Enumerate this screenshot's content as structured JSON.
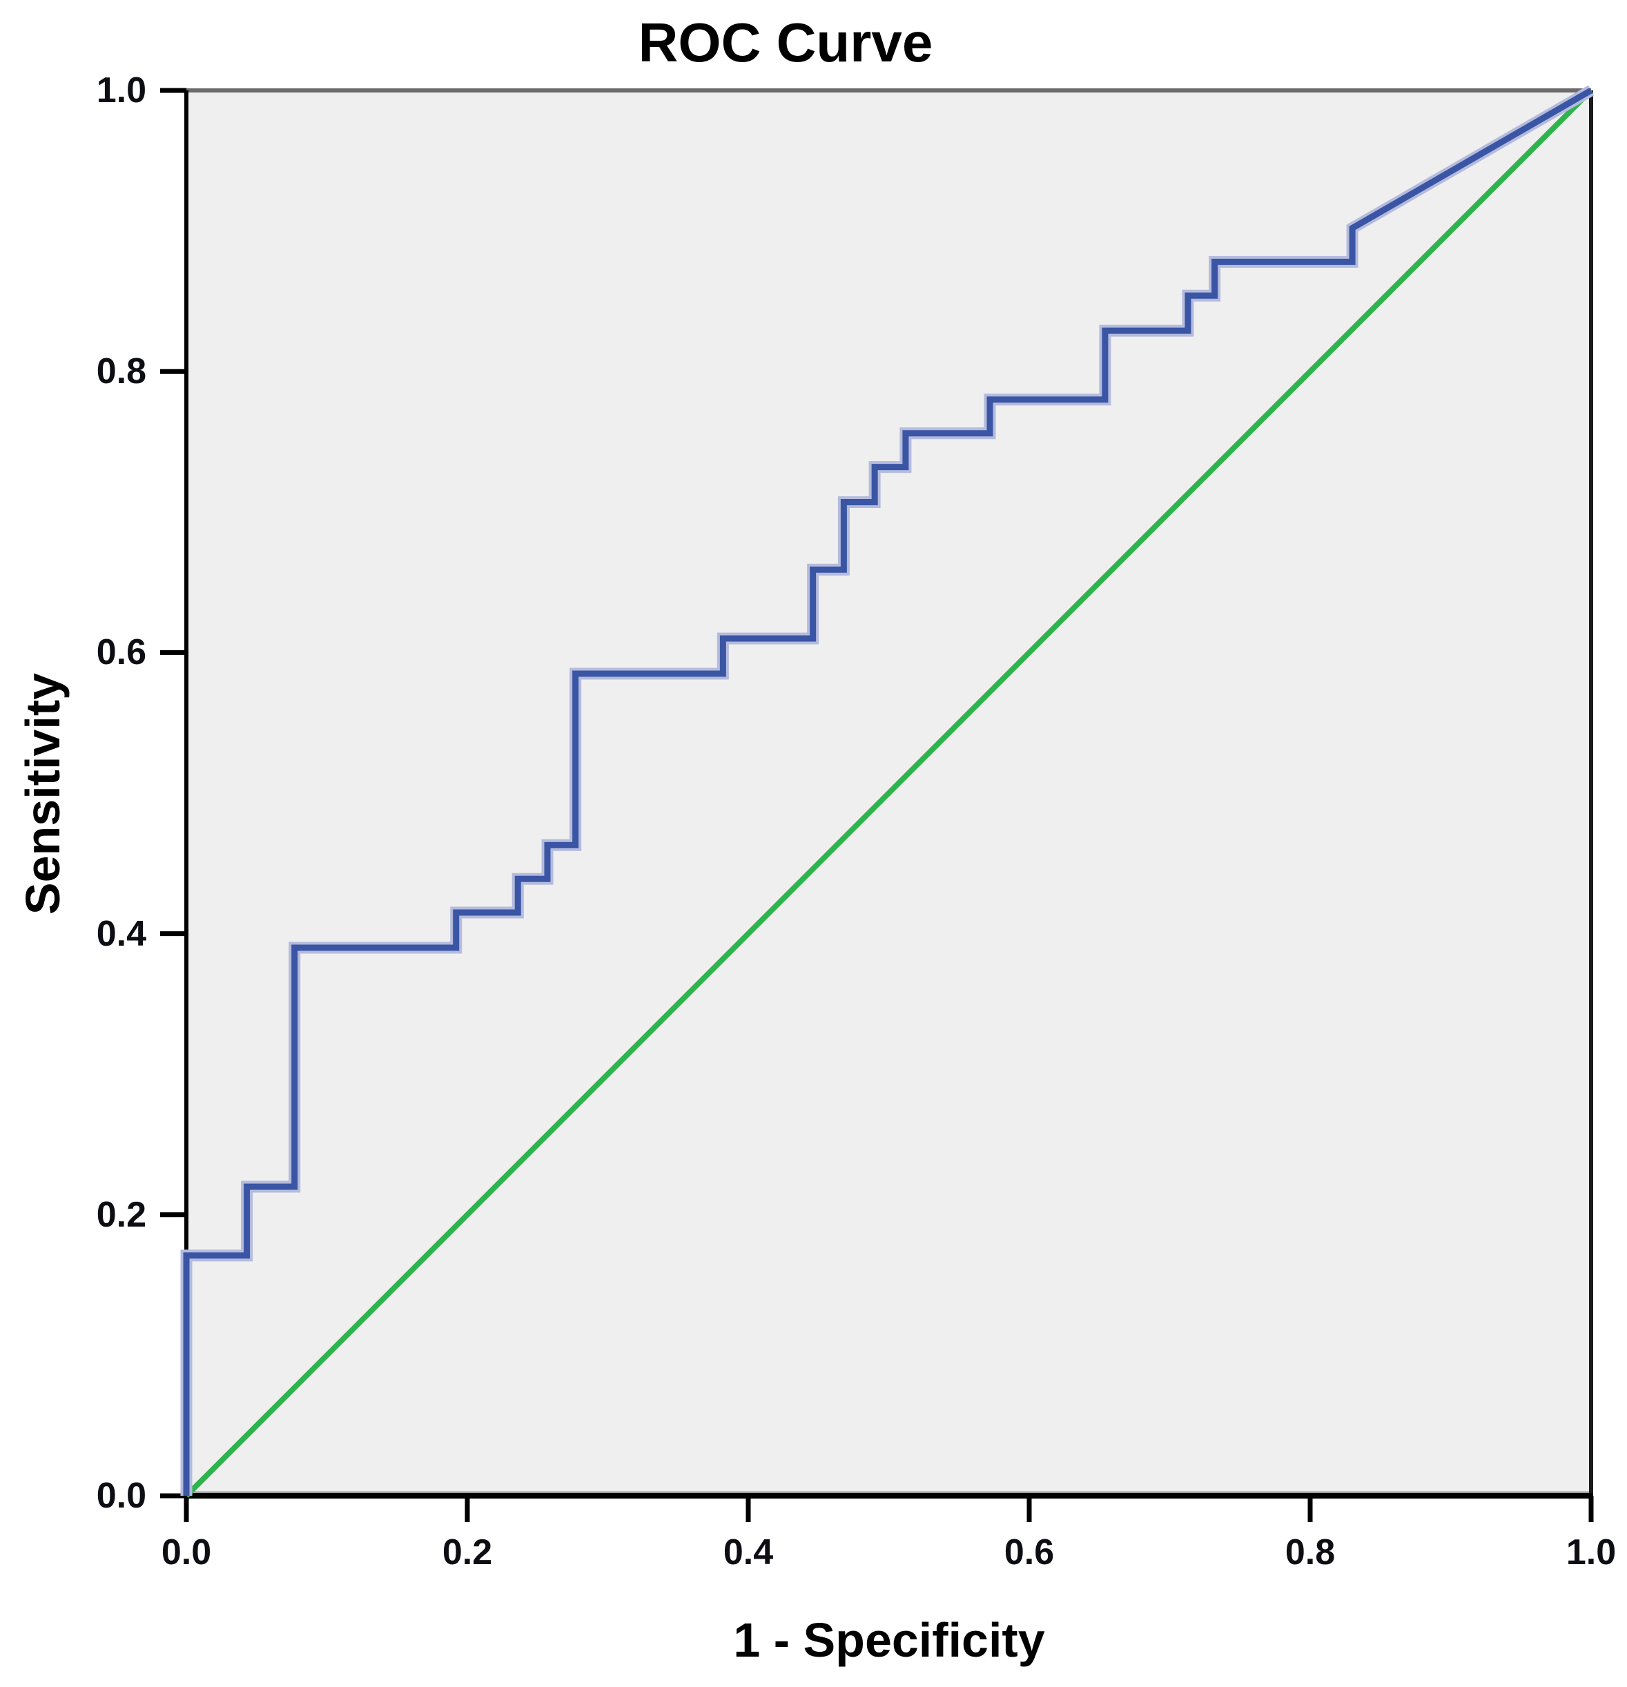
{
  "chart": {
    "title": "ROC Curve",
    "xlabel": "1 - Specificity",
    "ylabel": "Sensitivity"
  },
  "chart_data": {
    "type": "line",
    "subtype": "roc-step-curve",
    "title": "ROC Curve",
    "xlabel": "1 - Specificity",
    "ylabel": "Sensitivity",
    "xlim": [
      0.0,
      1.0
    ],
    "ylim": [
      0.0,
      1.0
    ],
    "x_ticks": [
      "0.0",
      "0.2",
      "0.4",
      "0.6",
      "0.8",
      "1.0"
    ],
    "y_ticks": [
      "0.0",
      "0.2",
      "0.4",
      "0.6",
      "0.8",
      "1.0"
    ],
    "grid": false,
    "legend": "none",
    "series": [
      {
        "name": "ROC curve",
        "color": "#3a55a4",
        "halo_color": "#b4bbdd",
        "points": [
          [
            0.0,
            0.0
          ],
          [
            0.0,
            0.171
          ],
          [
            0.043,
            0.171
          ],
          [
            0.043,
            0.22
          ],
          [
            0.077,
            0.22
          ],
          [
            0.077,
            0.39
          ],
          [
            0.192,
            0.39
          ],
          [
            0.192,
            0.415
          ],
          [
            0.236,
            0.415
          ],
          [
            0.236,
            0.439
          ],
          [
            0.257,
            0.439
          ],
          [
            0.257,
            0.463
          ],
          [
            0.277,
            0.463
          ],
          [
            0.277,
            0.585
          ],
          [
            0.382,
            0.585
          ],
          [
            0.382,
            0.61
          ],
          [
            0.446,
            0.61
          ],
          [
            0.446,
            0.659
          ],
          [
            0.468,
            0.659
          ],
          [
            0.468,
            0.707
          ],
          [
            0.49,
            0.707
          ],
          [
            0.49,
            0.732
          ],
          [
            0.512,
            0.732
          ],
          [
            0.512,
            0.756
          ],
          [
            0.572,
            0.756
          ],
          [
            0.572,
            0.78
          ],
          [
            0.654,
            0.78
          ],
          [
            0.654,
            0.829
          ],
          [
            0.713,
            0.829
          ],
          [
            0.713,
            0.854
          ],
          [
            0.732,
            0.854
          ],
          [
            0.732,
            0.878
          ],
          [
            0.83,
            0.878
          ],
          [
            0.83,
            0.902
          ],
          [
            1.0,
            1.0
          ]
        ]
      },
      {
        "name": "Reference line",
        "color": "#2fb34c",
        "points": [
          [
            0.0,
            0.0
          ],
          [
            1.0,
            1.0
          ]
        ]
      }
    ],
    "colors": {
      "plot_background": "#efefef",
      "frame_top": "#6b6b6b",
      "frame_right": "#1a1a1a",
      "axis_left": "#000000",
      "axis_bottom": "#000000",
      "tick_mark": "#000000",
      "inner_edge": "#a2a2a2",
      "text": "#000000"
    }
  }
}
